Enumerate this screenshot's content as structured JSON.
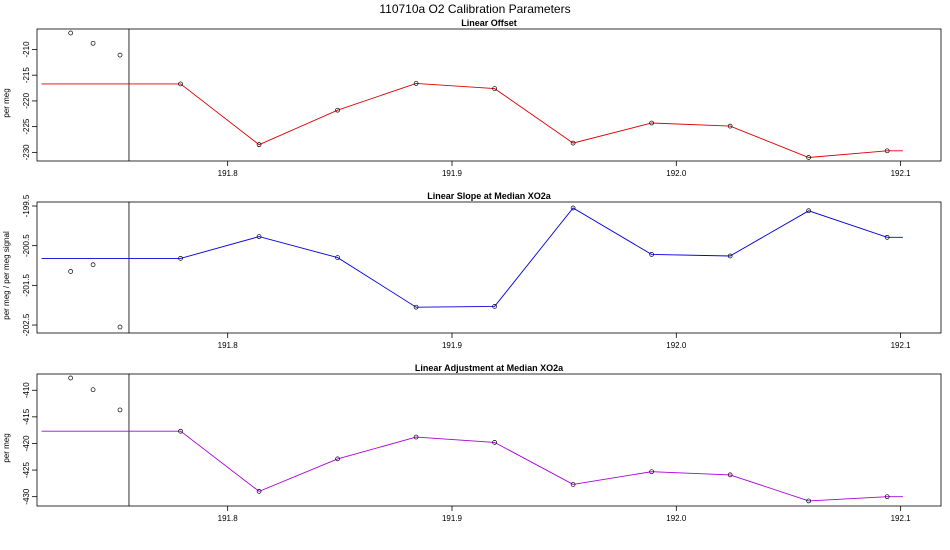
{
  "title": "110710a   O2 Calibration Parameters",
  "chart_data": [
    {
      "type": "line",
      "title": "Linear Offset",
      "ylabel": "per meg",
      "color": "#e00000",
      "xlim": [
        191.715,
        192.118
      ],
      "ylim": [
        -230.9,
        -206.8
      ],
      "xticks": [
        "191.8",
        "191.9",
        "192.0",
        "192.1"
      ],
      "yticks": [
        "-210",
        "-215",
        "-220",
        "-225",
        "-230"
      ],
      "divider_x": 191.756,
      "calibration_points": {
        "x": [
          191.73,
          191.74,
          191.752
        ],
        "y": [
          -206.8,
          -208.8,
          -211.1
        ]
      },
      "series": {
        "x": [
          191.717,
          191.779,
          191.814,
          191.849,
          191.884,
          191.919,
          191.954,
          191.989,
          192.024,
          192.059,
          192.094,
          192.101
        ],
        "y": [
          -216.7,
          -216.7,
          -228.5,
          -221.8,
          -216.6,
          -217.6,
          -228.2,
          -224.3,
          -224.9,
          -231.0,
          -229.7,
          -229.7
        ]
      }
    },
    {
      "type": "line",
      "title": "Linear Slope at Median XO2a",
      "ylabel": "per meg / per meg signal",
      "color": "#0000e0",
      "xlim": [
        191.715,
        192.118
      ],
      "ylim": [
        -202.6,
        -199.5
      ],
      "xticks": [
        "191.8",
        "191.9",
        "192.0",
        "192.1"
      ],
      "yticks": [
        "-199.5",
        "-200.5",
        "-201.5",
        "-202.5"
      ],
      "divider_x": 191.756,
      "calibration_points": {
        "x": [
          191.73,
          191.74,
          191.752
        ],
        "y": [
          -201.15,
          -200.98,
          -202.55
        ]
      },
      "series": {
        "x": [
          191.717,
          191.779,
          191.814,
          191.849,
          191.884,
          191.919,
          191.954,
          191.989,
          192.024,
          192.059,
          192.094,
          192.101
        ],
        "y": [
          -200.82,
          -200.82,
          -200.27,
          -200.8,
          -202.05,
          -202.03,
          -199.55,
          -200.72,
          -200.76,
          -199.62,
          -200.29,
          -200.29
        ]
      }
    },
    {
      "type": "line",
      "title": "Linear Adjustment at Median XO2a",
      "ylabel": "per meg",
      "color": "#aa00dd",
      "xlim": [
        191.715,
        192.118
      ],
      "ylim": [
        -431.0,
        -407.7
      ],
      "xticks": [
        "191.8",
        "191.9",
        "192.0",
        "192.1"
      ],
      "yticks": [
        "-410",
        "-415",
        "-420",
        "-425",
        "-430"
      ],
      "divider_x": 191.756,
      "calibration_points": {
        "x": [
          191.73,
          191.74,
          191.752
        ],
        "y": [
          -407.7,
          -409.9,
          -413.7
        ]
      },
      "series": {
        "x": [
          191.717,
          191.779,
          191.814,
          191.849,
          191.884,
          191.919,
          191.954,
          191.989,
          192.024,
          192.059,
          192.094,
          192.101
        ],
        "y": [
          -417.7,
          -417.7,
          -429.0,
          -422.9,
          -418.8,
          -419.8,
          -427.7,
          -425.3,
          -425.9,
          -430.8,
          -430.0,
          -430.0
        ]
      }
    }
  ]
}
